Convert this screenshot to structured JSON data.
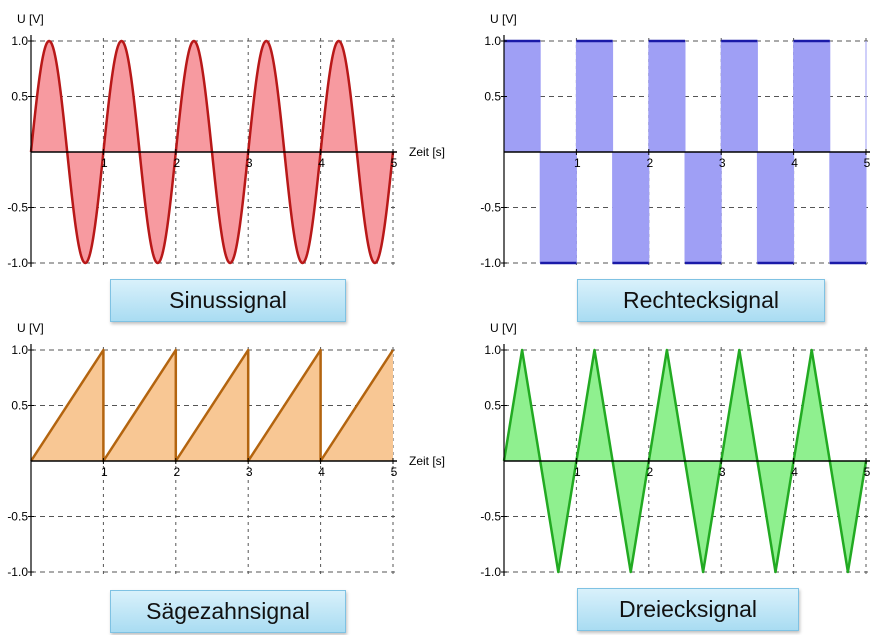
{
  "chart_data": [
    {
      "type": "area",
      "title": "Sinussignal",
      "ylabel": "U [V]",
      "xlabel": "Zeit [s]",
      "xlim": [
        0,
        5
      ],
      "ylim": [
        -1,
        1
      ],
      "x_ticks": [
        "1",
        "2",
        "3",
        "4",
        "5"
      ],
      "y_ticks": [
        "1.0",
        "0.5",
        "-0.5",
        "-1.0"
      ],
      "waveform": "sine",
      "period_s": 1,
      "amplitude": 1.0,
      "color": "#b81818",
      "fill": "#f79aa0"
    },
    {
      "type": "area",
      "title": "Rechtecksignal",
      "ylabel": "U [V]",
      "xlabel": "",
      "xlim": [
        0,
        5
      ],
      "ylim": [
        -1,
        1
      ],
      "x_ticks": [
        "1",
        "2",
        "3",
        "4",
        "5"
      ],
      "y_ticks": [
        "1.0",
        "0.5",
        "-0.5",
        "-1.0"
      ],
      "waveform": "square",
      "period_s": 1,
      "amplitude": 1.0,
      "color": "#1a1aa8",
      "fill": "#9f9ff5"
    },
    {
      "type": "area",
      "title": "Sägezahnsignal",
      "ylabel": "U [V]",
      "xlabel": "Zeit [s]",
      "xlim": [
        0,
        5
      ],
      "ylim": [
        -1,
        1
      ],
      "x_ticks": [
        "1",
        "2",
        "3",
        "4",
        "5"
      ],
      "y_ticks": [
        "1.0",
        "0.5",
        "-0.5",
        "-1.0"
      ],
      "waveform": "sawtooth",
      "period_s": 1,
      "amplitude": 1.0,
      "color": "#b3640f",
      "fill": "#f8c794"
    },
    {
      "type": "area",
      "title": "Dreiecksignal",
      "ylabel": "U [V]",
      "xlabel": "",
      "xlim": [
        0,
        5
      ],
      "ylim": [
        -1,
        1
      ],
      "x_ticks": [
        "1",
        "2",
        "3",
        "4",
        "5"
      ],
      "y_ticks": [
        "1.0",
        "0.5",
        "-0.5",
        "-1.0"
      ],
      "waveform": "triangle",
      "period_s": 1,
      "amplitude": 1.0,
      "color": "#22aa22",
      "fill": "#8ff08f"
    }
  ]
}
